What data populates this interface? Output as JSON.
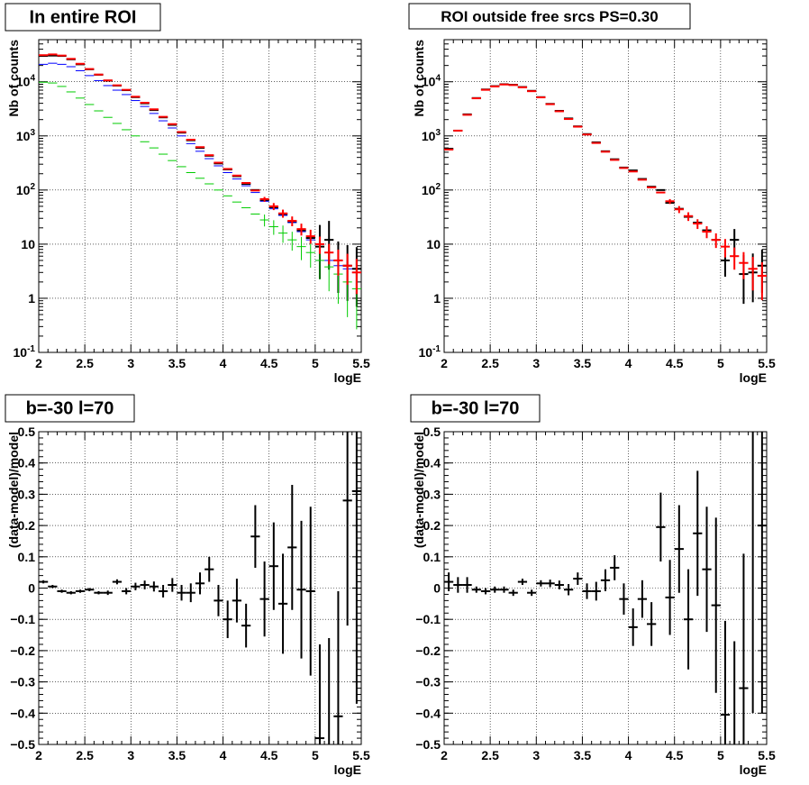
{
  "chart_data": [
    {
      "type": "scatter",
      "title": "In entire ROI",
      "xlabel": "logE",
      "ylabel": "Nb of counts",
      "xlim": [
        2,
        5.5
      ],
      "ylim": [
        0.1,
        60000
      ],
      "log_y": true,
      "grid": true,
      "x_ticks": [
        "2",
        "2.5",
        "3",
        "3.5",
        "4",
        "4.5",
        "5",
        "5.5"
      ],
      "y_ticks": [
        "10^{-1}",
        "1",
        "10",
        "10^{2}",
        "10^{3}",
        "10^{4}"
      ],
      "x": [
        2.05,
        2.15,
        2.25,
        2.35,
        2.45,
        2.55,
        2.65,
        2.75,
        2.85,
        2.95,
        3.05,
        3.15,
        3.25,
        3.35,
        3.45,
        3.55,
        3.65,
        3.75,
        3.85,
        3.95,
        4.05,
        4.15,
        4.25,
        4.35,
        4.45,
        4.55,
        4.65,
        4.75,
        4.85,
        4.95,
        5.05,
        5.15,
        5.25,
        5.35,
        5.45
      ],
      "series": [
        {
          "color": "#000000",
          "style": "errorbar",
          "values": [
            30000,
            30500,
            30000,
            26000,
            21000,
            17000,
            13500,
            10500,
            8500,
            7000,
            5200,
            4000,
            3000,
            2200,
            1600,
            1150,
            830,
            600,
            430,
            310,
            240,
            180,
            130,
            100,
            65,
            48,
            36,
            26,
            18,
            13,
            9,
            12,
            5,
            4,
            3.5
          ],
          "err_low": [
            0,
            0,
            0,
            0,
            0,
            0,
            0,
            0,
            0,
            0,
            0,
            0,
            0,
            0,
            0,
            0,
            0,
            0,
            0,
            0,
            0,
            0,
            0,
            0,
            0,
            0,
            0,
            0,
            0,
            0,
            0.6,
            0.55,
            0.6,
            0.65,
            0.7
          ],
          "err_high": [
            0,
            0,
            0,
            0,
            0,
            0,
            0,
            0,
            0,
            0,
            0,
            0,
            0,
            0,
            0,
            0,
            0,
            0,
            0,
            0,
            0,
            0,
            0,
            0,
            0,
            0,
            0,
            0,
            0,
            0,
            0.4,
            0.35,
            0.35,
            0.38,
            0.4
          ]
        },
        {
          "color": "#0000ff",
          "style": "step",
          "values": [
            21000,
            22000,
            21000,
            19000,
            16000,
            13000,
            10500,
            8500,
            7000,
            5800,
            4500,
            3500,
            2600,
            1900,
            1400,
            1000,
            720,
            520,
            380,
            280,
            210,
            160,
            120,
            90,
            62,
            45,
            34,
            25,
            17,
            12,
            5,
            5,
            4,
            3.5,
            3
          ]
        },
        {
          "color": "#00cc00",
          "style": "step",
          "values": [
            9800,
            9500,
            8200,
            6500,
            5000,
            3800,
            2900,
            2200,
            1700,
            1300,
            1000,
            780,
            600,
            460,
            350,
            270,
            210,
            165,
            130,
            100,
            78,
            60,
            47,
            36,
            28,
            21,
            16,
            12,
            9,
            7,
            5,
            3.8,
            2.8,
            2,
            1.5
          ],
          "err_low": [
            0,
            0,
            0,
            0,
            0,
            0,
            0,
            0,
            0,
            0,
            0,
            0,
            0,
            0,
            0,
            0,
            0,
            0,
            0,
            0,
            0,
            0,
            0,
            0,
            0.12,
            0.15,
            0.18,
            0.2,
            0.25,
            0.28,
            0.35,
            0.45,
            0.55,
            0.65,
            0.75
          ],
          "err_high": [
            0,
            0,
            0,
            0,
            0,
            0,
            0,
            0,
            0,
            0,
            0,
            0,
            0,
            0,
            0,
            0,
            0,
            0,
            0,
            0,
            0,
            0,
            0,
            0,
            0.1,
            0.12,
            0.14,
            0.15,
            0.18,
            0.2,
            0.22,
            0.25,
            0.3,
            0.35,
            0.4
          ]
        },
        {
          "color": "#ff0000",
          "style": "errorbar",
          "values": [
            31000,
            32000,
            30500,
            26500,
            21500,
            17200,
            13600,
            10600,
            8600,
            7100,
            5300,
            4100,
            3100,
            2250,
            1650,
            1180,
            850,
            620,
            440,
            320,
            245,
            185,
            135,
            98,
            68,
            50,
            37,
            27,
            19,
            14,
            10,
            7,
            5,
            4,
            3
          ],
          "err_low": [
            0,
            0,
            0,
            0,
            0,
            0,
            0,
            0,
            0,
            0,
            0,
            0,
            0,
            0,
            0,
            0,
            0,
            0,
            0,
            0,
            0,
            0,
            0,
            0,
            0.05,
            0.07,
            0.08,
            0.1,
            0.12,
            0.14,
            0.18,
            0.22,
            0.28,
            0.35,
            0.4
          ],
          "err_high": [
            0,
            0,
            0,
            0,
            0,
            0,
            0,
            0,
            0,
            0,
            0,
            0,
            0,
            0,
            0,
            0,
            0,
            0,
            0,
            0,
            0,
            0,
            0,
            0,
            0.04,
            0.06,
            0.07,
            0.08,
            0.1,
            0.12,
            0.14,
            0.16,
            0.2,
            0.22,
            0.25
          ]
        }
      ]
    },
    {
      "type": "scatter",
      "title": "ROI outside free srcs PS=0.30",
      "xlabel": "logE",
      "ylabel": "Nb of counts",
      "xlim": [
        2,
        5.5
      ],
      "ylim": [
        0.1,
        60000
      ],
      "log_y": true,
      "grid": true,
      "x_ticks": [
        "2",
        "2.5",
        "3",
        "3.5",
        "4",
        "4.5",
        "5",
        "5.5"
      ],
      "y_ticks": [
        "10^{-1}",
        "1",
        "10",
        "10^{2}",
        "10^{3}",
        "10^{4}"
      ],
      "x": [
        2.05,
        2.15,
        2.25,
        2.35,
        2.45,
        2.55,
        2.65,
        2.75,
        2.85,
        2.95,
        3.05,
        3.15,
        3.25,
        3.35,
        3.45,
        3.55,
        3.65,
        3.75,
        3.85,
        3.95,
        4.05,
        4.15,
        4.25,
        4.35,
        4.45,
        4.55,
        4.65,
        4.75,
        4.85,
        4.95,
        5.05,
        5.15,
        5.25,
        5.35,
        5.45
      ],
      "series": [
        {
          "color": "#000000",
          "style": "errorbar",
          "values": [
            580,
            1250,
            2500,
            5000,
            7200,
            8300,
            9000,
            8800,
            8000,
            6800,
            5200,
            3900,
            2900,
            2100,
            1500,
            1080,
            760,
            520,
            370,
            260,
            230,
            160,
            115,
            100,
            58,
            45,
            32,
            25,
            18,
            12,
            5,
            12,
            2.8,
            3,
            4
          ],
          "err_low": [
            0,
            0,
            0,
            0,
            0,
            0,
            0,
            0,
            0,
            0,
            0,
            0,
            0,
            0,
            0,
            0,
            0,
            0,
            0,
            0,
            0,
            0,
            0,
            0,
            0,
            0,
            0,
            0,
            0,
            0,
            0.3,
            0.3,
            0.55,
            0.55,
            0.5
          ],
          "err_high": [
            0,
            0,
            0,
            0,
            0,
            0,
            0,
            0,
            0,
            0,
            0,
            0,
            0,
            0,
            0,
            0,
            0,
            0,
            0,
            0,
            0,
            0,
            0,
            0,
            0,
            0,
            0,
            0,
            0,
            0,
            0.25,
            0.2,
            0.35,
            0.35,
            0.3
          ]
        },
        {
          "color": "#ff0000",
          "style": "errorbar",
          "values": [
            560,
            1250,
            2450,
            4950,
            7100,
            8200,
            8900,
            8700,
            7900,
            6700,
            5150,
            3850,
            2850,
            2050,
            1480,
            1060,
            740,
            510,
            360,
            255,
            220,
            155,
            112,
            90,
            62,
            44,
            33,
            24,
            17,
            12,
            9,
            6,
            4.5,
            3.5,
            2.6
          ],
          "err_low": [
            0,
            0,
            0,
            0,
            0,
            0,
            0,
            0,
            0,
            0,
            0,
            0,
            0,
            0,
            0,
            0,
            0,
            0,
            0,
            0,
            0,
            0,
            0,
            0,
            0.05,
            0.07,
            0.09,
            0.1,
            0.12,
            0.15,
            0.2,
            0.25,
            0.3,
            0.4,
            0.45
          ],
          "err_high": [
            0,
            0,
            0,
            0,
            0,
            0,
            0,
            0,
            0,
            0,
            0,
            0,
            0,
            0,
            0,
            0,
            0,
            0,
            0,
            0,
            0,
            0,
            0,
            0,
            0.04,
            0.06,
            0.07,
            0.08,
            0.1,
            0.12,
            0.14,
            0.16,
            0.2,
            0.22,
            0.25
          ]
        }
      ]
    },
    {
      "type": "scatter",
      "title": "b=-30 l=70",
      "xlabel": "logE",
      "ylabel": "(data-model)/model",
      "xlim": [
        2,
        5.5
      ],
      "ylim": [
        -0.5,
        0.5
      ],
      "log_y": false,
      "grid": true,
      "x_ticks": [
        "2",
        "2.5",
        "3",
        "3.5",
        "4",
        "4.5",
        "5",
        "5.5"
      ],
      "y_ticks": [
        "−0.5",
        "−0.4",
        "−0.3",
        "−0.2",
        "−0.1",
        "0",
        "0.1",
        "0.2",
        "0.3",
        "0.4",
        "0.5"
      ],
      "x": [
        2.05,
        2.15,
        2.25,
        2.35,
        2.45,
        2.55,
        2.65,
        2.75,
        2.85,
        2.95,
        3.05,
        3.15,
        3.25,
        3.35,
        3.45,
        3.55,
        3.65,
        3.75,
        3.85,
        3.95,
        4.05,
        4.15,
        4.25,
        4.35,
        4.45,
        4.55,
        4.65,
        4.75,
        4.85,
        4.95,
        5.05,
        5.15,
        5.25,
        5.35,
        5.45
      ],
      "series": [
        {
          "color": "#000000",
          "style": "errorbar",
          "values": [
            0.02,
            0.005,
            -0.01,
            -0.015,
            -0.01,
            -0.005,
            -0.015,
            -0.015,
            0.02,
            -0.01,
            0.005,
            0.01,
            0.005,
            -0.01,
            0.01,
            -0.015,
            -0.015,
            0.015,
            0.06,
            -0.04,
            -0.1,
            -0.04,
            -0.12,
            0.165,
            -0.035,
            0.07,
            -0.05,
            0.13,
            -0.005,
            -0.01,
            -0.48,
            -0.51,
            -0.41,
            0.28,
            0.31
          ],
          "err": [
            0.005,
            0.005,
            0.005,
            0.005,
            0.005,
            0.005,
            0.005,
            0.007,
            0.008,
            0.01,
            0.012,
            0.014,
            0.016,
            0.02,
            0.022,
            0.025,
            0.03,
            0.035,
            0.04,
            0.05,
            0.06,
            0.07,
            0.07,
            0.1,
            0.12,
            0.14,
            0.16,
            0.2,
            0.22,
            0.27,
            0.3,
            0.35,
            0.4,
            0.4,
            0.68
          ],
          "show_marker": [
            true,
            true,
            true,
            true,
            true,
            true,
            true,
            true,
            true,
            true,
            true,
            true,
            true,
            true,
            true,
            true,
            true,
            true,
            true,
            true,
            true,
            true,
            true,
            true,
            true,
            true,
            true,
            true,
            true,
            true,
            true,
            false,
            true,
            true,
            true
          ]
        }
      ]
    },
    {
      "type": "scatter",
      "title": "b=-30 l=70",
      "xlabel": "logE",
      "ylabel": "(data-model)/model",
      "xlim": [
        2,
        5.5
      ],
      "ylim": [
        -0.5,
        0.5
      ],
      "log_y": false,
      "grid": true,
      "x_ticks": [
        "2",
        "2.5",
        "3",
        "3.5",
        "4",
        "4.5",
        "5",
        "5.5"
      ],
      "y_ticks": [
        "−0.5",
        "−0.4",
        "−0.3",
        "−0.2",
        "−0.1",
        "0",
        "0.1",
        "0.2",
        "0.3",
        "0.4",
        "0.5"
      ],
      "x": [
        2.05,
        2.15,
        2.25,
        2.35,
        2.45,
        2.55,
        2.65,
        2.75,
        2.85,
        2.95,
        3.05,
        3.15,
        3.25,
        3.35,
        3.45,
        3.55,
        3.65,
        3.75,
        3.85,
        3.95,
        4.05,
        4.15,
        4.25,
        4.35,
        4.45,
        4.55,
        4.65,
        4.75,
        4.85,
        4.95,
        5.05,
        5.15,
        5.25,
        5.35,
        5.45
      ],
      "series": [
        {
          "color": "#000000",
          "style": "errorbar",
          "values": [
            0.02,
            0.01,
            0.01,
            -0.005,
            -0.01,
            -0.005,
            -0.005,
            -0.015,
            0.02,
            -0.015,
            0.015,
            0.015,
            0.01,
            -0.005,
            0.03,
            -0.01,
            -0.01,
            0.025,
            0.065,
            -0.035,
            -0.125,
            -0.035,
            -0.115,
            0.195,
            -0.03,
            0.125,
            -0.1,
            0.175,
            0.06,
            -0.055,
            -0.405,
            -0.51,
            -0.32,
            0.2,
            0.2
          ],
          "err": [
            0.03,
            0.025,
            0.025,
            0.01,
            0.01,
            0.01,
            0.01,
            0.01,
            0.01,
            0.01,
            0.01,
            0.012,
            0.014,
            0.018,
            0.02,
            0.025,
            0.03,
            0.035,
            0.04,
            0.05,
            0.06,
            0.06,
            0.07,
            0.11,
            0.12,
            0.14,
            0.16,
            0.2,
            0.2,
            0.28,
            0.3,
            0.34,
            0.43,
            0.6,
            0.6
          ],
          "show_marker": [
            true,
            true,
            true,
            true,
            true,
            true,
            true,
            true,
            true,
            true,
            true,
            true,
            true,
            true,
            true,
            true,
            true,
            true,
            true,
            true,
            true,
            true,
            true,
            true,
            true,
            true,
            true,
            true,
            true,
            true,
            true,
            false,
            true,
            false,
            true
          ]
        }
      ]
    }
  ]
}
